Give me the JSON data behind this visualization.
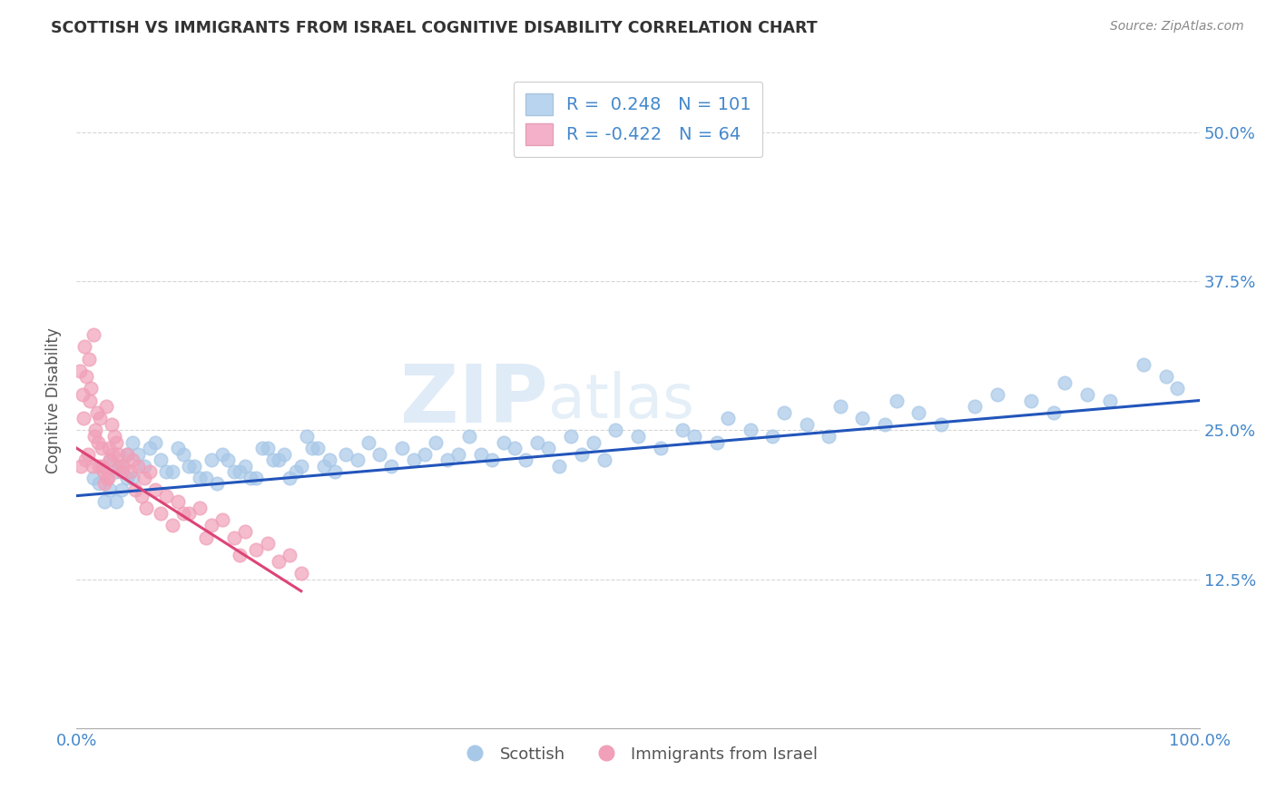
{
  "title": "SCOTTISH VS IMMIGRANTS FROM ISRAEL COGNITIVE DISABILITY CORRELATION CHART",
  "source": "Source: ZipAtlas.com",
  "ylabel": "Cognitive Disability",
  "xlim": [
    0.0,
    100.0
  ],
  "ylim": [
    0.0,
    55.0
  ],
  "yticks": [
    0,
    12.5,
    25.0,
    37.5,
    50.0
  ],
  "background_color": "#ffffff",
  "grid_color": "#cccccc",
  "watermark_text": "ZIPatlas",
  "legend_R_blue": "0.248",
  "legend_N_blue": "101",
  "legend_R_pink": "-0.422",
  "legend_N_pink": "64",
  "blue_color": "#a8c8e8",
  "pink_color": "#f0a0b8",
  "blue_line_color": "#2255bb",
  "pink_line_color": "#dd4477",
  "title_color": "#333333",
  "axis_label_color": "#4488cc",
  "scottish_x": [
    1.5,
    2.0,
    2.5,
    3.0,
    3.5,
    4.0,
    4.5,
    5.0,
    6.0,
    7.0,
    8.0,
    9.0,
    10.0,
    11.0,
    12.0,
    13.0,
    14.0,
    15.0,
    16.0,
    17.0,
    18.0,
    19.0,
    20.0,
    21.0,
    22.0,
    23.0,
    24.0,
    25.0,
    26.0,
    27.0,
    28.0,
    29.0,
    30.0,
    31.0,
    32.0,
    33.0,
    34.0,
    35.0,
    36.0,
    37.0,
    38.0,
    39.0,
    40.0,
    41.0,
    42.0,
    43.0,
    44.0,
    45.0,
    46.0,
    47.0,
    48.0,
    50.0,
    52.0,
    54.0,
    55.0,
    57.0,
    58.0,
    60.0,
    62.0,
    63.0,
    65.0,
    67.0,
    68.0,
    70.0,
    72.0,
    73.0,
    75.0,
    77.0,
    80.0,
    82.0,
    85.0,
    87.0,
    88.0,
    90.0,
    92.0,
    95.0,
    97.0,
    98.0,
    3.0,
    3.5,
    4.0,
    4.5,
    5.0,
    5.5,
    6.5,
    7.5,
    8.5,
    9.5,
    10.5,
    11.5,
    12.5,
    13.5,
    14.5,
    15.5,
    16.5,
    17.5,
    18.5,
    19.5,
    20.5,
    21.5,
    22.5
  ],
  "scottish_y": [
    21.0,
    20.5,
    19.0,
    22.5,
    21.5,
    20.0,
    23.0,
    21.0,
    22.0,
    24.0,
    21.5,
    23.5,
    22.0,
    21.0,
    22.5,
    23.0,
    21.5,
    22.0,
    21.0,
    23.5,
    22.5,
    21.0,
    22.0,
    23.5,
    22.0,
    21.5,
    23.0,
    22.5,
    24.0,
    23.0,
    22.0,
    23.5,
    22.5,
    23.0,
    24.0,
    22.5,
    23.0,
    24.5,
    23.0,
    22.5,
    24.0,
    23.5,
    22.5,
    24.0,
    23.5,
    22.0,
    24.5,
    23.0,
    24.0,
    22.5,
    25.0,
    24.5,
    23.5,
    25.0,
    24.5,
    24.0,
    26.0,
    25.0,
    24.5,
    26.5,
    25.5,
    24.5,
    27.0,
    26.0,
    25.5,
    27.5,
    26.5,
    25.5,
    27.0,
    28.0,
    27.5,
    26.5,
    29.0,
    28.0,
    27.5,
    30.5,
    29.5,
    28.5,
    20.0,
    19.0,
    22.0,
    21.0,
    24.0,
    23.0,
    23.5,
    22.5,
    21.5,
    23.0,
    22.0,
    21.0,
    20.5,
    22.5,
    21.5,
    21.0,
    23.5,
    22.5,
    23.0,
    21.5,
    24.5,
    23.5,
    22.5
  ],
  "israel_x": [
    0.4,
    0.6,
    0.8,
    1.0,
    1.2,
    1.4,
    1.6,
    1.8,
    2.0,
    2.2,
    2.4,
    2.6,
    2.8,
    3.0,
    3.2,
    3.5,
    3.8,
    4.0,
    4.5,
    5.0,
    5.5,
    6.0,
    6.5,
    7.0,
    8.0,
    9.0,
    10.0,
    11.0,
    12.0,
    13.0,
    14.0,
    15.0,
    16.0,
    17.0,
    18.0,
    19.0,
    20.0,
    0.3,
    0.5,
    0.7,
    0.9,
    1.1,
    1.3,
    1.5,
    1.7,
    1.9,
    2.1,
    2.3,
    2.5,
    2.7,
    2.9,
    3.1,
    3.4,
    3.7,
    4.2,
    4.8,
    5.2,
    5.8,
    6.2,
    7.5,
    8.5,
    9.5,
    11.5,
    14.5
  ],
  "israel_y": [
    22.0,
    26.0,
    22.5,
    23.0,
    27.5,
    22.0,
    24.5,
    26.5,
    22.0,
    23.5,
    21.5,
    27.0,
    21.0,
    22.5,
    23.0,
    24.0,
    22.0,
    21.5,
    23.0,
    22.5,
    22.0,
    21.0,
    21.5,
    20.0,
    19.5,
    19.0,
    18.0,
    18.5,
    17.0,
    17.5,
    16.0,
    16.5,
    15.0,
    15.5,
    14.0,
    14.5,
    13.0,
    30.0,
    28.0,
    32.0,
    29.5,
    31.0,
    28.5,
    33.0,
    25.0,
    24.0,
    26.0,
    22.0,
    20.5,
    21.0,
    23.5,
    25.5,
    24.5,
    23.0,
    22.0,
    21.5,
    20.0,
    19.5,
    18.5,
    18.0,
    17.0,
    18.0,
    16.0,
    14.5
  ],
  "blue_trend_x": [
    0,
    100
  ],
  "blue_trend_y": [
    19.5,
    27.5
  ],
  "pink_trend_x": [
    0,
    20
  ],
  "pink_trend_y": [
    23.5,
    11.5
  ]
}
